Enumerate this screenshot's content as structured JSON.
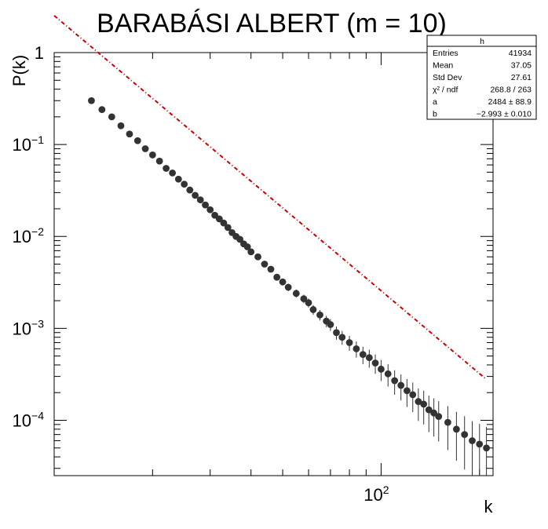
{
  "chart_data": {
    "type": "scatter",
    "title": "BARABÁSI ALBERT (m = 10)",
    "xlabel": "k",
    "ylabel": "P(k)",
    "xscale": "log",
    "yscale": "log",
    "xlim": [
      10,
      220
    ],
    "ylim": [
      2.5e-05,
      1.0
    ],
    "grid": false,
    "x_tick_labels": [
      {
        "value": 100,
        "base": "10",
        "exp": "2"
      }
    ],
    "y_tick_labels": [
      {
        "value": 1,
        "base": "1",
        "exp": ""
      },
      {
        "value": 0.1,
        "base": "10",
        "exp": "−1"
      },
      {
        "value": 0.01,
        "base": "10",
        "exp": "−2"
      },
      {
        "value": 0.001,
        "base": "10",
        "exp": "−3"
      },
      {
        "value": 0.0001,
        "base": "10",
        "exp": "−4"
      }
    ],
    "series": [
      {
        "type": "scatter_errorbars",
        "color": "#333333",
        "x": [
          13,
          14,
          15,
          16,
          17,
          18,
          19,
          20,
          21,
          22,
          23,
          24,
          25,
          26,
          27,
          28,
          29,
          30,
          31,
          32,
          33,
          34,
          35,
          36,
          37,
          38,
          39,
          40,
          42,
          44,
          46,
          48,
          50,
          52,
          55,
          58,
          60,
          62,
          65,
          68,
          70,
          73,
          76,
          80,
          84,
          88,
          92,
          96,
          100,
          105,
          110,
          115,
          120,
          125,
          130,
          135,
          140,
          145,
          150,
          160,
          170,
          180,
          190,
          200,
          210
        ],
        "y": [
          0.3,
          0.24,
          0.2,
          0.16,
          0.13,
          0.11,
          0.09,
          0.077,
          0.066,
          0.055,
          0.049,
          0.042,
          0.037,
          0.032,
          0.028,
          0.025,
          0.022,
          0.0195,
          0.017,
          0.0155,
          0.014,
          0.0125,
          0.011,
          0.01,
          0.0093,
          0.0083,
          0.0077,
          0.0068,
          0.006,
          0.005,
          0.0044,
          0.0036,
          0.0032,
          0.0028,
          0.0024,
          0.0021,
          0.0019,
          0.0016,
          0.0014,
          0.0012,
          0.0011,
          0.0009,
          0.0008,
          0.0007,
          0.0006,
          0.00052,
          0.00048,
          0.00042,
          0.00036,
          0.00032,
          0.00027,
          0.00024,
          0.00021,
          0.00019,
          0.00016,
          0.00015,
          0.00013,
          0.00012,
          0.00011,
          9.5e-05,
          8e-05,
          7e-05,
          6e-05,
          5.5e-05,
          5e-05
        ]
      },
      {
        "type": "fit_line",
        "color": "#cc0000",
        "function": "a * k^b",
        "a": 2484,
        "b": -2.993
      }
    ]
  },
  "stats_box": {
    "name": "h",
    "rows": [
      {
        "label": "Entries",
        "value": "41934"
      },
      {
        "label": "Mean",
        "value": "37.05"
      },
      {
        "label": "Std Dev",
        "value": "27.61"
      },
      {
        "label": "χ² / ndf",
        "value": "268.8 / 263"
      },
      {
        "label": "a",
        "value": "2484 ± 88.9"
      },
      {
        "label": "b",
        "value": "−2.993 ± 0.010"
      }
    ]
  }
}
